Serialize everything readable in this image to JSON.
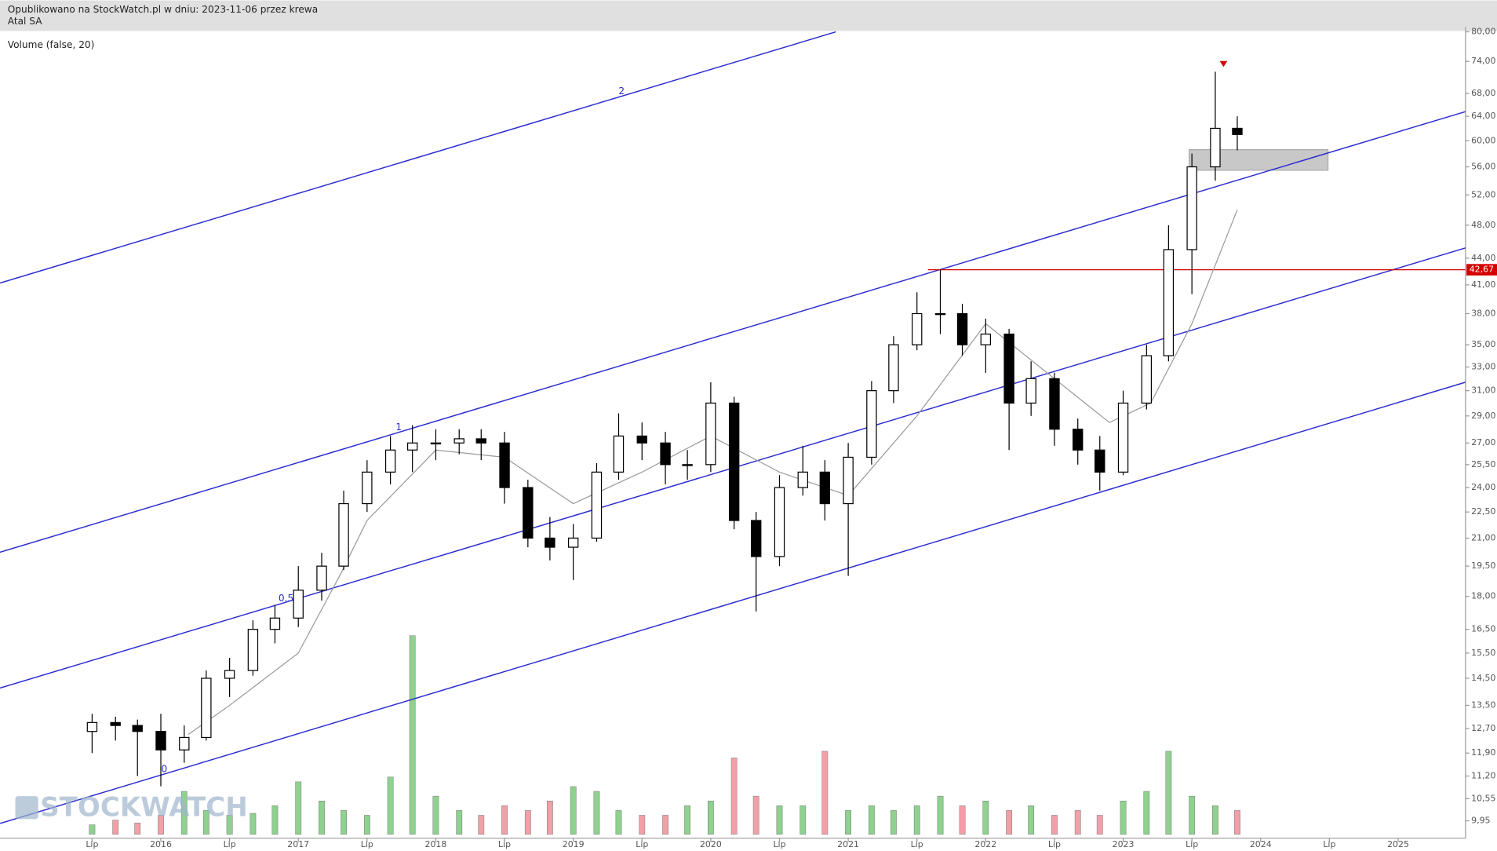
{
  "chart_data": {
    "type": "candlestick",
    "header": {
      "line1": "Opublikowano na StockWatch.pl w dniu: 2023-11-06 przez krewa",
      "line2": "Atal SA"
    },
    "subtitle": "Volume (false, 20)",
    "watermark": "STOCKWATCH",
    "log_scale": true,
    "up_color": "#ffffff",
    "down_color": "#000000",
    "volume_up_color": "#8fd18f",
    "volume_down_color": "#f2a0a8",
    "ma_color": "#999999",
    "channel_color": "#2b2bd0",
    "level_color": "#d40000",
    "x": [
      2015.5,
      2015.67,
      2015.83,
      2016,
      2016.17,
      2016.33,
      2016.5,
      2016.67,
      2016.83,
      2017,
      2017.17,
      2017.33,
      2017.5,
      2017.67,
      2017.83,
      2018,
      2018.17,
      2018.33,
      2018.5,
      2018.67,
      2018.83,
      2019,
      2019.17,
      2019.33,
      2019.5,
      2019.67,
      2019.83,
      2020,
      2020.17,
      2020.33,
      2020.5,
      2020.67,
      2020.83,
      2021,
      2021.17,
      2021.33,
      2021.5,
      2021.67,
      2021.83,
      2022,
      2022.17,
      2022.33,
      2022.5,
      2022.67,
      2022.83,
      2023,
      2023.17,
      2023.33,
      2023.5,
      2023.67,
      2023.83
    ],
    "open": [
      12.6,
      12.9,
      12.8,
      12.6,
      12.0,
      12.4,
      14.5,
      14.8,
      16.5,
      17,
      18.3,
      19.5,
      23,
      25,
      26.5,
      27,
      27,
      27.3,
      27,
      24,
      21,
      20.5,
      21,
      25,
      27.5,
      27,
      25.5,
      25.5,
      30,
      22,
      20,
      24,
      25,
      23,
      26,
      31,
      35,
      38,
      38,
      35,
      36,
      30,
      32,
      28,
      26.5,
      25,
      30,
      34,
      45,
      56,
      62
    ],
    "high": [
      13.2,
      13.1,
      13.0,
      13.2,
      12.8,
      14.8,
      15.3,
      16.9,
      17.6,
      19.5,
      20.2,
      23.8,
      25.8,
      27.5,
      28.3,
      28,
      28,
      28,
      27.8,
      24.5,
      22.2,
      21.8,
      25.6,
      29.2,
      28.5,
      27.8,
      26.5,
      31.7,
      30.5,
      22.5,
      24.8,
      26.8,
      25.8,
      27,
      31.8,
      35.8,
      40.2,
      42.7,
      39,
      37.5,
      36.5,
      33.5,
      32.5,
      28.8,
      27.5,
      31,
      35,
      48,
      58,
      72,
      64
    ],
    "low": [
      11.9,
      12.3,
      11.2,
      10.9,
      11.6,
      12.3,
      13.8,
      14.6,
      15.9,
      16.6,
      17.8,
      19.3,
      22.5,
      24.2,
      25,
      25.8,
      26.2,
      25.8,
      23,
      20.5,
      19.8,
      18.8,
      20.8,
      24.5,
      25.8,
      24.2,
      24.5,
      25,
      21.5,
      17.3,
      19.5,
      23.5,
      22,
      19,
      25.5,
      30,
      34.5,
      36,
      34,
      32.5,
      26.5,
      29,
      26.8,
      25.5,
      23.8,
      24.8,
      29.5,
      33.5,
      40,
      54,
      58.5
    ],
    "close": [
      12.9,
      12.8,
      12.6,
      12.0,
      12.4,
      14.5,
      14.8,
      16.5,
      17,
      18.3,
      19.5,
      23,
      25,
      26.5,
      27,
      27,
      27.3,
      27,
      24,
      21,
      20.5,
      21,
      25,
      27.5,
      27,
      25.5,
      25.5,
      30,
      22,
      20,
      24,
      25,
      23,
      26,
      31,
      35,
      38,
      38,
      35,
      36,
      30,
      32,
      28,
      26.5,
      25,
      30,
      34,
      45,
      56,
      62,
      61
    ],
    "volume": [
      10,
      15,
      12,
      20,
      45,
      25,
      20,
      22,
      30,
      55,
      35,
      25,
      20,
      60,
      208,
      40,
      25,
      20,
      30,
      25,
      35,
      50,
      45,
      25,
      20,
      20,
      30,
      35,
      80,
      40,
      30,
      30,
      87,
      25,
      30,
      25,
      30,
      40,
      30,
      35,
      25,
      30,
      20,
      25,
      20,
      35,
      45,
      87,
      40,
      30,
      25
    ],
    "volume_lim": [
      0,
      220
    ],
    "ma": {
      "x": [
        2016.2,
        2016.5,
        2017,
        2017.3,
        2017.5,
        2018,
        2018.5,
        2019,
        2019.5,
        2020,
        2020.5,
        2021,
        2021.5,
        2022,
        2022.5,
        2022.9,
        2023.2,
        2023.5,
        2023.83
      ],
      "values": [
        12.5,
        13.5,
        15.5,
        19,
        22,
        26.5,
        26,
        23,
        25,
        27.5,
        25,
        23.5,
        29,
        37,
        32,
        28.5,
        30,
        37,
        50
      ]
    },
    "channels": [
      {
        "label": "0",
        "x": [
          2014.83,
          2025.49
        ],
        "y": [
          9.88,
          31.7
        ]
      },
      {
        "label": "0.5",
        "x": [
          2014.83,
          2025.49
        ],
        "y": [
          14.13,
          45.2
        ]
      },
      {
        "label": "1",
        "x": [
          2014.83,
          2025.49
        ],
        "y": [
          20.23,
          64.8
        ]
      },
      {
        "label": "2",
        "x": [
          2014.83,
          2020.91
        ],
        "y": [
          41.2,
          80
        ]
      }
    ],
    "level": {
      "value": 42.67,
      "label": "42,67",
      "x_start": 2021.58
    },
    "zone": {
      "x": [
        2023.48,
        2024.49
      ],
      "y": [
        55.5,
        58.6
      ]
    },
    "peak_marker": {
      "x": 2023.73,
      "y": 73.5
    },
    "xlim": [
      2014.83,
      2025.49
    ],
    "ylim": [
      9.6,
      81
    ],
    "xticks": [
      {
        "value": 2015.5,
        "label": "Lip"
      },
      2016,
      {
        "value": 2016.5,
        "label": "Lip"
      },
      2017,
      {
        "value": 2017.5,
        "label": "Lip"
      },
      2018,
      {
        "value": 2018.5,
        "label": "Lip"
      },
      2019,
      {
        "value": 2019.5,
        "label": "Lip"
      },
      2020,
      {
        "value": 2020.5,
        "label": "Lip"
      },
      2021,
      {
        "value": 2021.5,
        "label": "Lip"
      },
      2022,
      {
        "value": 2022.5,
        "label": "Lip"
      },
      2023,
      {
        "value": 2023.5,
        "label": "Lip"
      },
      2024,
      {
        "value": 2024.5,
        "label": "Lip"
      },
      2025
    ],
    "yticks": [
      {
        "value": 80,
        "label": "80,00"
      },
      {
        "value": 74,
        "label": "74,00"
      },
      {
        "value": 68,
        "label": "68,00"
      },
      {
        "value": 64,
        "label": "64,00"
      },
      {
        "value": 60,
        "label": "60,00"
      },
      {
        "value": 56,
        "label": "56,00"
      },
      {
        "value": 52,
        "label": "52,00"
      },
      {
        "value": 48,
        "label": "48,00"
      },
      {
        "value": 44,
        "label": "44,00"
      },
      {
        "value": 41,
        "label": "41,00"
      },
      {
        "value": 38,
        "label": "38,00"
      },
      {
        "value": 35,
        "label": "35,00"
      },
      {
        "value": 33,
        "label": "33,00"
      },
      {
        "value": 31,
        "label": "31,00"
      },
      {
        "value": 29,
        "label": "29,00"
      },
      {
        "value": 27,
        "label": "27,00"
      },
      {
        "value": 25.5,
        "label": "25,50"
      },
      {
        "value": 24,
        "label": "24,00"
      },
      {
        "value": 22.5,
        "label": "22,50"
      },
      {
        "value": 21,
        "label": "21,00"
      },
      {
        "value": 19.5,
        "label": "19,50"
      },
      {
        "value": 18,
        "label": "18,00"
      },
      {
        "value": 16.5,
        "label": "16,50"
      },
      {
        "value": 15.5,
        "label": "15,50"
      },
      {
        "value": 14.5,
        "label": "14,50"
      },
      {
        "value": 13.5,
        "label": "13,50"
      },
      {
        "value": 12.7,
        "label": "12,70"
      },
      {
        "value": 11.9,
        "label": "11,90"
      },
      {
        "value": 11.2,
        "label": "11,20"
      },
      {
        "value": 10.55,
        "label": "10,55"
      },
      {
        "value": 9.95,
        "label": "9,95"
      }
    ]
  }
}
